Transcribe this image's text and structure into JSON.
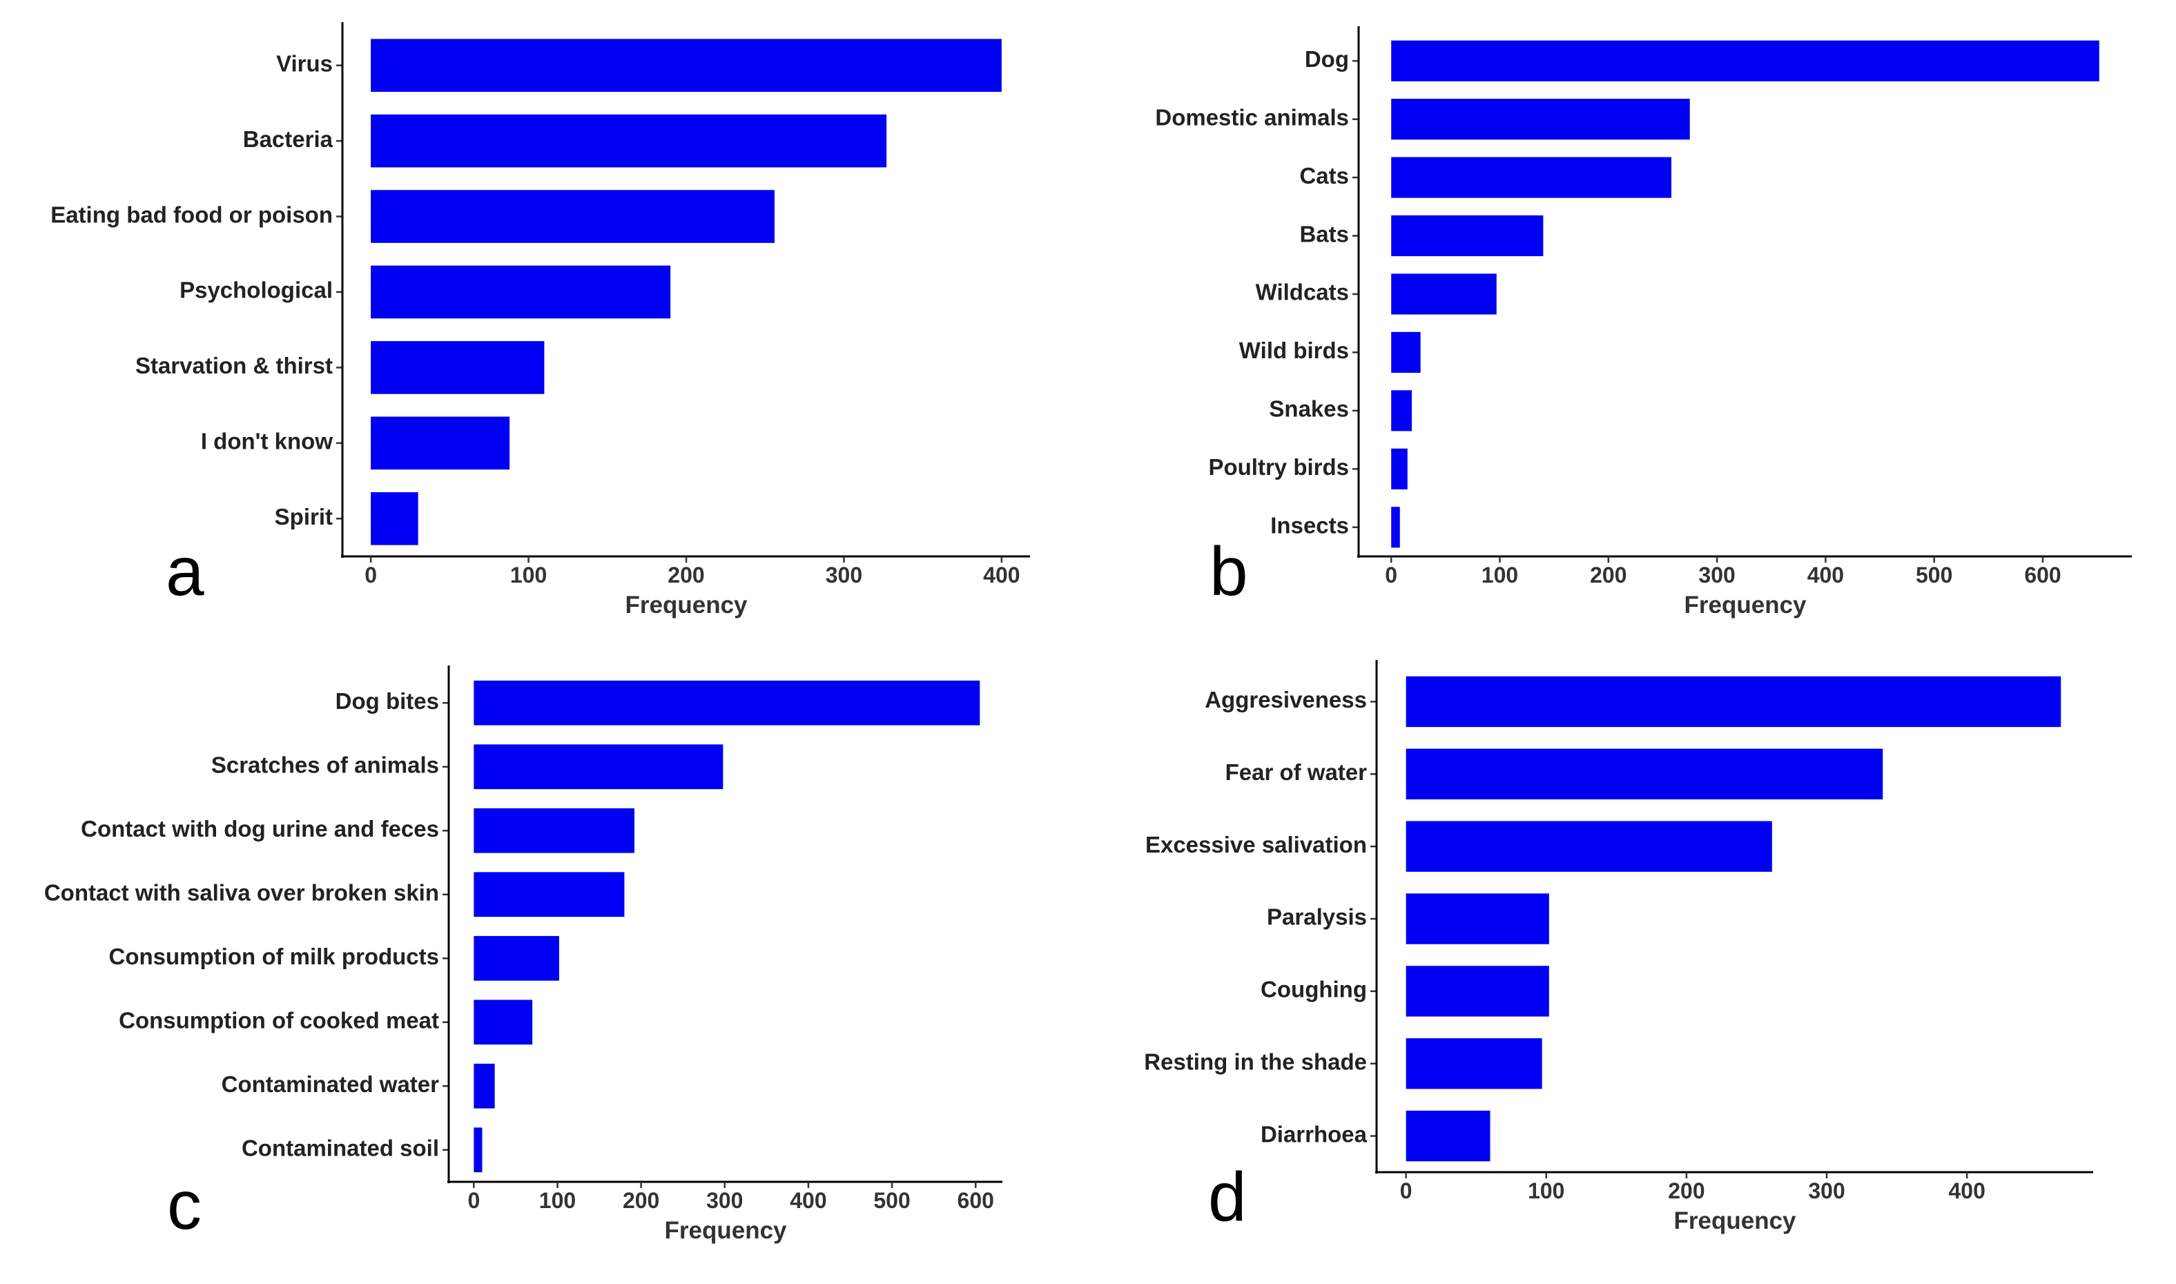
{
  "bar_color": "#0000f2",
  "chart_data": [
    {
      "panel": "a",
      "type": "bar",
      "orientation": "horizontal",
      "categories": [
        "Virus",
        "Bacteria",
        "Eating bad food or poison",
        "Psychological",
        "Starvation & thirst",
        "I don't know",
        "Spirit"
      ],
      "values": [
        400,
        327,
        256,
        190,
        110,
        88,
        30
      ],
      "xlabel": "Frequency",
      "ylabel": "",
      "xlim": [
        -18,
        418
      ],
      "xticks": [
        0,
        100,
        200,
        300,
        400
      ]
    },
    {
      "panel": "b",
      "type": "bar",
      "orientation": "horizontal",
      "categories": [
        "Dog",
        "Domestic animals",
        "Cats",
        "Bats",
        "Wildcats",
        "Wild birds",
        "Snakes",
        "Poultry birds",
        "Insects"
      ],
      "values": [
        652,
        275,
        258,
        140,
        97,
        27,
        19,
        15,
        8
      ],
      "xlabel": "Frequency",
      "ylabel": "",
      "xlim": [
        -30,
        682
      ],
      "xticks": [
        0,
        100,
        200,
        300,
        400,
        500,
        600
      ]
    },
    {
      "panel": "c",
      "type": "bar",
      "orientation": "horizontal",
      "categories": [
        "Dog bites",
        "Scratches of animals",
        "Contact with dog urine and feces",
        "Contact with saliva over broken skin",
        "Consumption of milk products",
        "Consumption of cooked meat",
        "Contaminated water",
        "Contaminated soil"
      ],
      "values": [
        605,
        298,
        192,
        180,
        102,
        70,
        25,
        10
      ],
      "xlabel": "Frequency",
      "ylabel": "",
      "xlim": [
        -30,
        632
      ],
      "xticks": [
        0,
        100,
        200,
        300,
        400,
        500,
        600
      ]
    },
    {
      "panel": "d",
      "type": "bar",
      "orientation": "horizontal",
      "categories": [
        "Aggresiveness",
        "Fear of water",
        "Excessive salivation",
        "Paralysis",
        "Coughing",
        "Resting in the shade",
        "Diarrhoea"
      ],
      "values": [
        467,
        340,
        261,
        102,
        102,
        97,
        60
      ],
      "xlabel": "Frequency",
      "ylabel": "",
      "xlim": [
        -21,
        490
      ],
      "xticks": [
        0,
        100,
        200,
        300,
        400
      ]
    }
  ]
}
